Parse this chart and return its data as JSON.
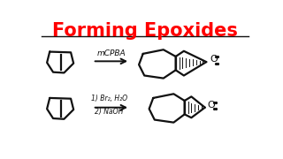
{
  "title": "Forming Epoxides",
  "title_color": "#FF0000",
  "title_fontsize": 15,
  "bg_color": "#FFFFFF",
  "line_color": "#111111",
  "lw": 1.6,
  "reaction1_reagent": "mCPBA",
  "reaction2_reagent1": "1) Br₂, H₂O",
  "reaction2_reagent2": "2) NaOH"
}
